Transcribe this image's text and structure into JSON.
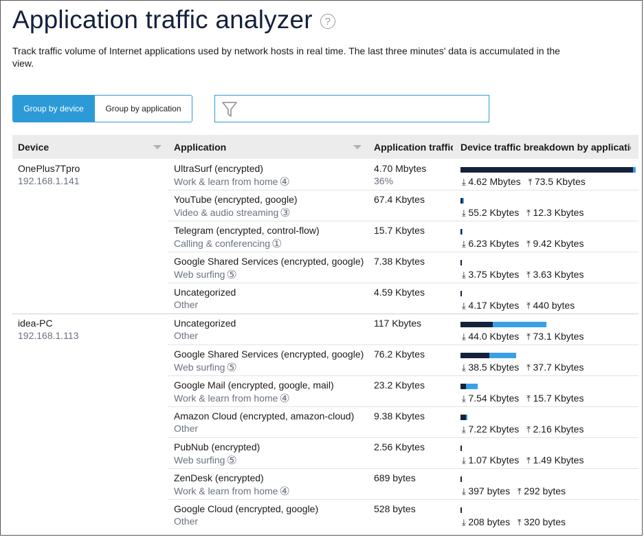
{
  "header": {
    "title": "Application traffic analyzer",
    "help_glyph": "?",
    "description": "Track traffic volume of Internet applications used by network hosts in real time. The last three minutes' data is accumulated in the view."
  },
  "toolbar": {
    "group_by_device": "Group by device",
    "group_by_application": "Group by application",
    "active_mode": "Group by device",
    "filter_value": "",
    "filter_placeholder": ""
  },
  "table": {
    "columns": {
      "device": "Device",
      "application": "Application",
      "traffic": "Application traffic",
      "breakdown": "Device traffic breakdown by application"
    }
  },
  "colors": {
    "accent": "#2d9ad8",
    "download_bar": "#14213d",
    "upload_bar": "#3aa0e6"
  },
  "devices": [
    {
      "name": "OnePlus7Tpro",
      "ip": "192.168.1.141",
      "apps": [
        {
          "app": "UltraSurf (encrypted)",
          "category": "Work & learn from home",
          "badge": "④",
          "traffic": "4.70 Mbytes",
          "percent": "36%",
          "down": "4.62 Mbytes",
          "up": "73.5 Kbytes",
          "down_share": 0.98,
          "up_share": 0.016
        },
        {
          "app": "YouTube (encrypted, google)",
          "category": "Video & audio streaming",
          "badge": "③",
          "traffic": "67.4 Kbytes",
          "percent": "",
          "down": "55.2 Kbytes",
          "up": "12.3 Kbytes",
          "down_share": 0.012,
          "up_share": 0.003
        },
        {
          "app": "Telegram (encrypted, control-flow)",
          "category": "Calling & conferencing",
          "badge": "①",
          "traffic": "15.7 Kbytes",
          "percent": "",
          "down": "6.23 Kbytes",
          "up": "9.42 Kbytes",
          "down_share": 0.004,
          "up_share": 0.004
        },
        {
          "app": "Google Shared Services (encrypted, google)",
          "category": "Web surfing",
          "badge": "⑤",
          "traffic": "7.38 Kbytes",
          "percent": "",
          "down": "3.75 Kbytes",
          "up": "3.63 Kbytes",
          "down_share": 0.004,
          "up_share": 0.0
        },
        {
          "app": "Uncategorized",
          "category": "Other",
          "badge": "",
          "traffic": "4.59 Kbytes",
          "percent": "",
          "down": "4.17 Kbytes",
          "up": "440 bytes",
          "down_share": 0.004,
          "up_share": 0.0
        }
      ]
    },
    {
      "name": "idea-PC",
      "ip": "192.168.1.113",
      "apps": [
        {
          "app": "Uncategorized",
          "category": "Other",
          "badge": "",
          "traffic": "117 Kbytes",
          "percent": "",
          "down": "44.0 Kbytes",
          "up": "73.1 Kbytes",
          "down_share": 0.183,
          "up_share": 0.305
        },
        {
          "app": "Google Shared Services (encrypted, google)",
          "category": "Web surfing",
          "badge": "⑤",
          "traffic": "76.2 Kbytes",
          "percent": "",
          "down": "38.5 Kbytes",
          "up": "37.7 Kbytes",
          "down_share": 0.163,
          "up_share": 0.155
        },
        {
          "app": "Google Mail (encrypted, google, mail)",
          "category": "Work & learn from home",
          "badge": "④",
          "traffic": "23.2 Kbytes",
          "percent": "",
          "down": "7.54 Kbytes",
          "up": "15.7 Kbytes",
          "down_share": 0.032,
          "up_share": 0.064
        },
        {
          "app": "Amazon Cloud (encrypted, amazon-cloud)",
          "category": "Other",
          "badge": "",
          "traffic": "9.38 Kbytes",
          "percent": "",
          "down": "7.22 Kbytes",
          "up": "2.16 Kbytes",
          "down_share": 0.032,
          "up_share": 0.008
        },
        {
          "app": "PubNub (encrypted)",
          "category": "Web surfing",
          "badge": "⑤",
          "traffic": "2.56 Kbytes",
          "percent": "",
          "down": "1.07 Kbytes",
          "up": "1.49 Kbytes",
          "down_share": 0.008,
          "up_share": 0.0
        },
        {
          "app": "ZenDesk (encrypted)",
          "category": "Work & learn from home",
          "badge": "④",
          "traffic": "689 bytes",
          "percent": "",
          "down": "397 bytes",
          "up": "292 bytes",
          "down_share": 0.004,
          "up_share": 0.0
        },
        {
          "app": "Google Cloud (encrypted, google)",
          "category": "Other",
          "badge": "",
          "traffic": "528 bytes",
          "percent": "",
          "down": "208 bytes",
          "up": "320 bytes",
          "down_share": 0.004,
          "up_share": 0.0
        }
      ]
    }
  ]
}
